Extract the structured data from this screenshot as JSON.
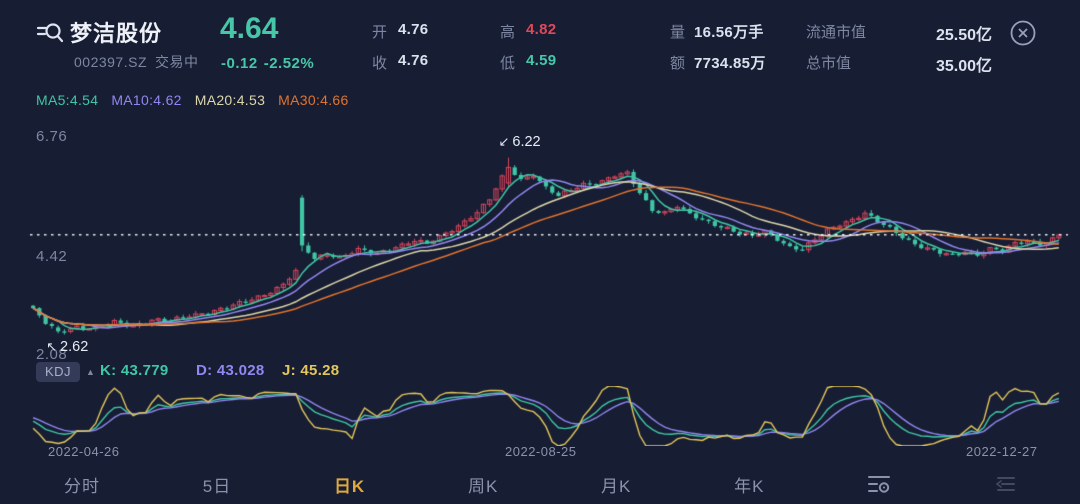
{
  "header": {
    "stock_name": "梦洁股份",
    "stock_code": "002397.SZ",
    "trading_status": "交易中",
    "price": "4.64",
    "change": "-0.12",
    "change_pct": "-2.52%",
    "open_label": "开",
    "open": "4.76",
    "close_label": "收",
    "close": "4.76",
    "high_label": "高",
    "high": "4.82",
    "low_label": "低",
    "low": "4.59",
    "volume_label": "量",
    "volume": "16.56万手",
    "turnover_label": "额",
    "turnover": "7734.85万",
    "float_cap_label": "流通市值",
    "float_cap": "25.50亿",
    "total_cap_label": "总市值",
    "total_cap": "35.00亿"
  },
  "ma_legend": {
    "ma5": "MA5:4.54",
    "ma10": "MA10:4.62",
    "ma20": "MA20:4.53",
    "ma30": "MA30:4.66"
  },
  "kdj": {
    "name": "KDJ",
    "k": "K: 43.779",
    "d": "D: 43.028",
    "j": "J: 45.28"
  },
  "tabs": {
    "items": [
      "分时",
      "5日",
      "日K",
      "周K",
      "月K",
      "年K"
    ],
    "active_index": 2
  },
  "colors": {
    "background": "#171d33",
    "up": "#d8455b",
    "down": "#3fc7a5",
    "price_green": "#46c8a8",
    "value_red": "#e0485a",
    "label_gray": "#7e87a2",
    "ma5": "#3fc7a5",
    "ma10": "#9287f0",
    "ma20": "#ddd6ab",
    "ma30": "#e0742e",
    "kdj_k": "#3fc7a5",
    "kdj_d": "#9287f0",
    "kdj_j": "#e3c75c",
    "active_tab": "#dfa93e",
    "price_line": "#ffffff"
  },
  "chart_data": {
    "type": "candlestick",
    "title": "梦洁股份 002397.SZ 日K",
    "x_axis_labels": [
      "2022-04-26",
      "2022-08-25",
      "2022-12-27"
    ],
    "y_axis_labels": [
      "6.76",
      "4.42",
      "2.08"
    ],
    "ylim": [
      1.95,
      6.95
    ],
    "num_candles": 165,
    "current_price_line": 4.64,
    "period_high": 6.22,
    "period_low": 2.62,
    "annotations": [
      {
        "type": "high",
        "arrow": "↙",
        "text": "6.22",
        "index": 76,
        "price": 6.22
      },
      {
        "type": "low",
        "arrow": "↖",
        "text": "2.62",
        "index": 4,
        "price": 2.62
      }
    ],
    "close_anchors": [
      [
        0,
        3.1
      ],
      [
        2,
        2.82
      ],
      [
        4,
        2.66
      ],
      [
        7,
        2.76
      ],
      [
        10,
        2.72
      ],
      [
        13,
        2.84
      ],
      [
        16,
        2.78
      ],
      [
        19,
        2.9
      ],
      [
        22,
        2.86
      ],
      [
        25,
        2.98
      ],
      [
        28,
        3.06
      ],
      [
        31,
        3.14
      ],
      [
        34,
        3.26
      ],
      [
        37,
        3.42
      ],
      [
        40,
        3.62
      ],
      [
        42,
        3.88
      ],
      [
        43,
        4.42
      ],
      [
        45,
        4.14
      ],
      [
        47,
        4.26
      ],
      [
        49,
        4.18
      ],
      [
        52,
        4.32
      ],
      [
        55,
        4.24
      ],
      [
        58,
        4.4
      ],
      [
        61,
        4.52
      ],
      [
        63,
        4.44
      ],
      [
        66,
        4.66
      ],
      [
        69,
        4.92
      ],
      [
        71,
        5.1
      ],
      [
        73,
        5.35
      ],
      [
        75,
        5.8
      ],
      [
        76,
        6.02
      ],
      [
        78,
        5.78
      ],
      [
        80,
        5.88
      ],
      [
        82,
        5.6
      ],
      [
        84,
        5.42
      ],
      [
        86,
        5.55
      ],
      [
        88,
        5.68
      ],
      [
        91,
        5.74
      ],
      [
        93,
        5.84
      ],
      [
        95,
        5.88
      ],
      [
        97,
        5.5
      ],
      [
        99,
        5.16
      ],
      [
        101,
        5.1
      ],
      [
        103,
        5.22
      ],
      [
        105,
        5.04
      ],
      [
        107,
        4.94
      ],
      [
        109,
        4.86
      ],
      [
        111,
        4.78
      ],
      [
        113,
        4.66
      ],
      [
        115,
        4.6
      ],
      [
        117,
        4.7
      ],
      [
        119,
        4.56
      ],
      [
        121,
        4.4
      ],
      [
        123,
        4.34
      ],
      [
        125,
        4.52
      ],
      [
        127,
        4.72
      ],
      [
        129,
        4.86
      ],
      [
        131,
        4.96
      ],
      [
        133,
        5.08
      ],
      [
        135,
        4.9
      ],
      [
        137,
        4.76
      ],
      [
        139,
        4.6
      ],
      [
        141,
        4.46
      ],
      [
        143,
        4.36
      ],
      [
        145,
        4.26
      ],
      [
        147,
        4.2
      ],
      [
        149,
        4.3
      ],
      [
        151,
        4.24
      ],
      [
        153,
        4.36
      ],
      [
        155,
        4.3
      ],
      [
        157,
        4.44
      ],
      [
        159,
        4.5
      ],
      [
        161,
        4.46
      ],
      [
        163,
        4.56
      ],
      [
        164,
        4.64
      ]
    ],
    "special_candles": {
      "4": {
        "o": 2.74,
        "h": 2.78,
        "l": 2.62,
        "c": 2.66
      },
      "43": {
        "o": 5.4,
        "h": 5.45,
        "l": 4.3,
        "c": 4.42
      },
      "76": {
        "o": 5.7,
        "h": 6.22,
        "l": 5.62,
        "c": 6.02
      }
    },
    "ma_periods": [
      5,
      10,
      20,
      30
    ],
    "indicator": {
      "type": "KDJ",
      "n": 9
    }
  }
}
